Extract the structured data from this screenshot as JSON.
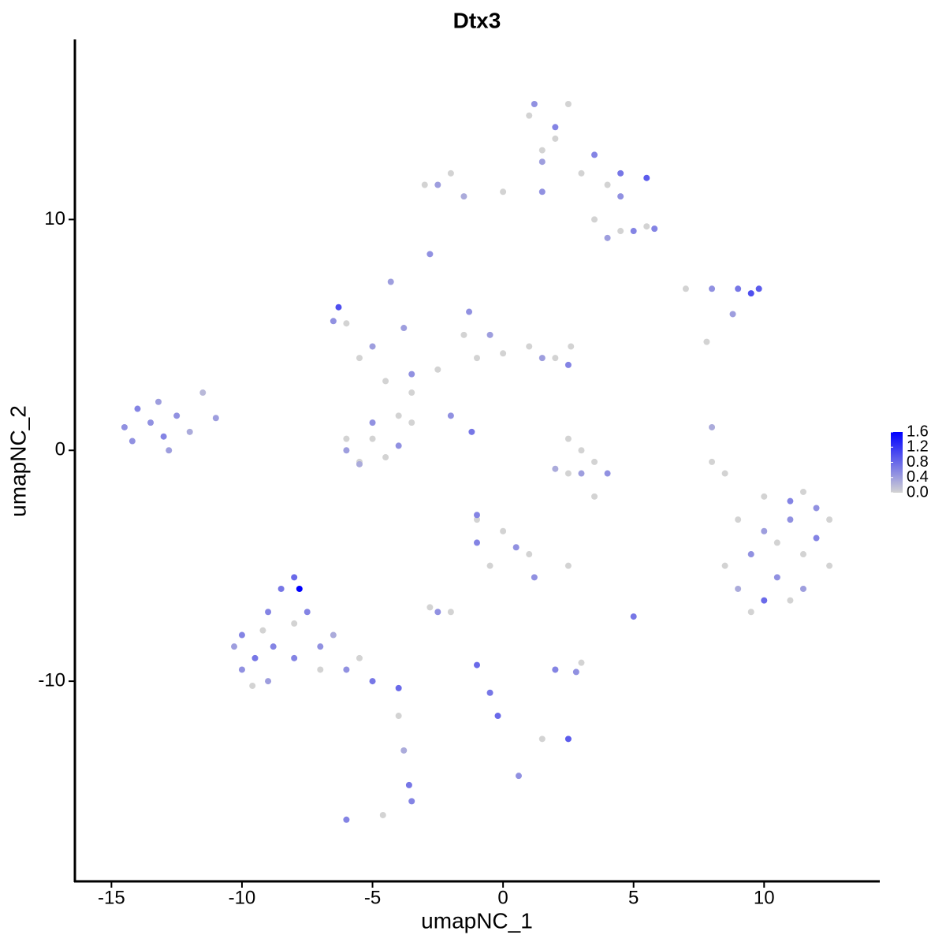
{
  "chart_data": {
    "type": "scatter",
    "title": "Dtx3",
    "x_label": "umapNC_1",
    "y_label": "umapNC_2",
    "xlim": [
      -16.4,
      14.4
    ],
    "ylim": [
      -18.67,
      17.8
    ],
    "xticks": [
      -15,
      -10,
      -5,
      0,
      5,
      10
    ],
    "yticks": [
      -10,
      0,
      10
    ],
    "x": [
      -14.5,
      -14,
      -13.5,
      -13,
      -13.2,
      -12.5,
      -12,
      -11.5,
      -11,
      -14.2,
      -12.8,
      -10,
      -9.5,
      -9,
      -8.5,
      -8,
      -7.8,
      -8.8,
      -10,
      -9,
      -8,
      -7,
      -6,
      -5,
      -4,
      -7.5,
      -6.5,
      -10.3,
      -9.2,
      -8,
      -9.6,
      -7,
      -5.5,
      -4,
      -3.8,
      -3.6,
      -3.5,
      -6,
      -4.6,
      -6,
      -5.5,
      -4.5,
      -3.5,
      -2.5,
      -1.5,
      -1,
      0,
      1,
      2,
      2.6,
      -4,
      -5,
      -6,
      -5.5,
      -4.5,
      -3.5,
      -6.5,
      -5,
      -3.5,
      -1.3,
      -0.5,
      1.5,
      2.5,
      -6,
      -5,
      -4,
      -5.5,
      -2,
      -1.2,
      -4.3,
      -3.8,
      -6.3,
      1,
      2.5,
      1.5,
      3,
      4,
      0,
      -3,
      -2,
      4.5,
      5.5,
      3.5,
      2,
      1.2,
      2,
      1.5,
      3.5,
      4.5,
      5.5,
      4.5,
      5,
      5.8,
      4,
      -2.5,
      -1.5,
      1.5,
      -2.8,
      7,
      8,
      9,
      9.5,
      9.8,
      8.8,
      7.8,
      2.5,
      3,
      3.5,
      2.5,
      3,
      2,
      4,
      3.5,
      8,
      8,
      8.5,
      9,
      10,
      11.5,
      12.5,
      12.5,
      11,
      9.5,
      8.5,
      10.5,
      11.5,
      9.5,
      10,
      11,
      12,
      10.5,
      11.5,
      9,
      10,
      12,
      11,
      -1,
      0,
      1,
      -0.5,
      -2,
      -2.8,
      2.5,
      2,
      3,
      1.5,
      -1,
      -1,
      0.5,
      1.2,
      -2.5,
      2,
      2.8,
      -1,
      -0.5,
      -0.2,
      2.5,
      5,
      0.6
    ],
    "y": [
      1,
      1.8,
      1.2,
      0.6,
      2.1,
      1.5,
      0.8,
      2.5,
      1.4,
      0.4,
      0,
      -8,
      -9,
      -7,
      -6,
      -5.5,
      -6,
      -8.5,
      -9.5,
      -10,
      -9,
      -8.5,
      -9.5,
      -10,
      -10.3,
      -7,
      -8,
      -8.5,
      -7.8,
      -7.5,
      -10.2,
      -9.5,
      -9,
      -11.5,
      -13,
      -14.5,
      -15.2,
      -16,
      -15.8,
      5.5,
      4,
      3,
      2.5,
      3.5,
      5,
      4,
      4.2,
      4.5,
      4,
      4.5,
      1.5,
      0.5,
      0.5,
      -0.5,
      -0.3,
      1.2,
      5.6,
      4.5,
      3.3,
      6,
      5,
      4,
      3.7,
      0,
      1.2,
      0.2,
      -0.6,
      1.5,
      0.8,
      7.3,
      5.3,
      6.2,
      14.5,
      15,
      13,
      12,
      11.5,
      11.2,
      11.5,
      12,
      9.5,
      9.7,
      10,
      13.5,
      15,
      14,
      12.5,
      12.8,
      12,
      11.8,
      11,
      9.5,
      9.6,
      9.2,
      11.5,
      11,
      11.2,
      8.5,
      7,
      7,
      7,
      6.8,
      7,
      5.9,
      4.7,
      0.5,
      0,
      -0.5,
      -1,
      -1,
      -0.8,
      -1,
      -2,
      1,
      -0.5,
      -1,
      -3,
      -2,
      -1.8,
      -3,
      -5,
      -6.5,
      -7,
      -5,
      -4,
      -4.5,
      -4.5,
      -3.5,
      -3,
      -3.8,
      -5.5,
      -6,
      -6,
      -6.5,
      -2.5,
      -2.2,
      -3,
      -3.5,
      -4.5,
      -5,
      -7,
      -6.8,
      -5,
      -9.5,
      -9.2,
      -12.5,
      -2.8,
      -4,
      -4.2,
      -5.5,
      -7,
      -9.5,
      -9.6,
      -9.3,
      -10.5,
      -11.5,
      -12.5,
      -7.2,
      -14.1
    ],
    "values": [
      0.5,
      0.6,
      0.5,
      0.6,
      0.4,
      0.5,
      0.3,
      0.2,
      0.4,
      0.5,
      0.4,
      0.6,
      0.7,
      0.6,
      0.7,
      0.8,
      1.6,
      0.6,
      0.5,
      0.4,
      0.6,
      0.5,
      0.5,
      0.7,
      0.8,
      0.6,
      0.3,
      0.4,
      0,
      0,
      0,
      0,
      0,
      0,
      0.3,
      0.7,
      0.6,
      0.6,
      0,
      0,
      0,
      0,
      0,
      0,
      0,
      0,
      0,
      0,
      0,
      0,
      0,
      0,
      0,
      0,
      0,
      0,
      0.5,
      0.4,
      0.5,
      0.5,
      0.4,
      0.4,
      0.6,
      0.4,
      0.5,
      0.5,
      0.3,
      0.5,
      0.7,
      0.4,
      0.4,
      1.0,
      0,
      0,
      0,
      0,
      0,
      0,
      0,
      0,
      0,
      0,
      0,
      0,
      0.5,
      0.6,
      0.4,
      0.6,
      0.7,
      0.9,
      0.5,
      0.6,
      0.6,
      0.4,
      0.4,
      0.3,
      0.5,
      0.5,
      0,
      0.5,
      0.7,
      1.0,
      0.9,
      0.4,
      0,
      0,
      0,
      0,
      0,
      0.4,
      0.3,
      0.5,
      0,
      0.3,
      0,
      0,
      0,
      0,
      0,
      0,
      0,
      0,
      0,
      0,
      0,
      0,
      0.5,
      0.4,
      0.5,
      0.6,
      0.5,
      0.4,
      0.3,
      0.8,
      0.5,
      0.6,
      0,
      0,
      0,
      0,
      0,
      0,
      0,
      0,
      0,
      0,
      0.6,
      0.6,
      0.5,
      0.5,
      0.5,
      0.6,
      0.5,
      0.8,
      0.7,
      0.8,
      0.9,
      0.7,
      0.5
    ],
    "colorbar": {
      "lim": [
        0,
        1.6
      ],
      "colors": [
        "#d3d3d3",
        "#0000ff"
      ],
      "ticks": [
        {
          "value": 0,
          "label": "0.0"
        },
        {
          "value": 0.4,
          "label": "0.4"
        },
        {
          "value": 0.8,
          "label": "0.8"
        },
        {
          "value": 1.2,
          "label": "1.2"
        },
        {
          "value": 1.6,
          "label": "1.6"
        }
      ]
    }
  }
}
